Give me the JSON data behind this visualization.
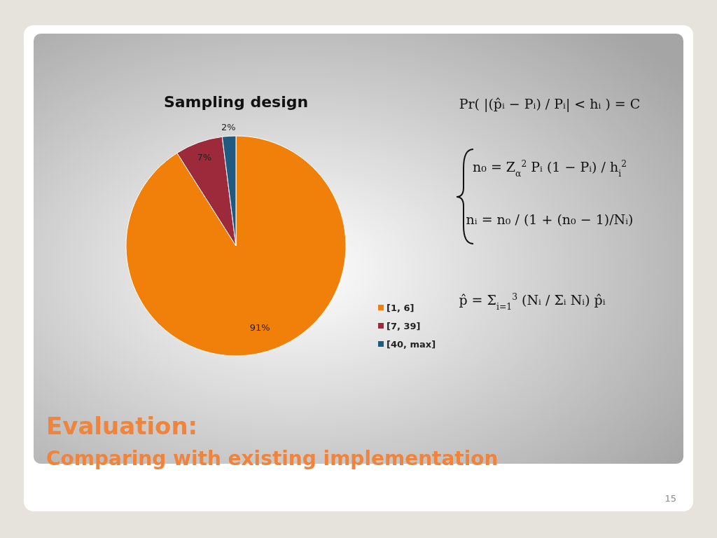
{
  "chart_data": {
    "type": "pie",
    "title": "Evaluation:",
    "subtitle": "Comparing with existing implementation",
    "categories": [
      "[1, 6]",
      "[7, 39]",
      "[40, max]"
    ],
    "values": [
      91,
      7,
      2
    ],
    "colors": [
      "#f0800a",
      "#9c2a3a",
      "#1f5a80"
    ],
    "value_labels": [
      "91%",
      "7%",
      "2%"
    ],
    "legend": "right",
    "annotations": [
      "Sampling design",
      "Pr( |(p̂ᵢ − Pᵢ) / Pᵢ| < hᵢ ) = C",
      "n₀ = Z$_{α}$$^{2}$ Pᵢ (1 − Pᵢ) / h$_{i}$$^{2}$",
      "nᵢ = n₀ / (1 + (n₀ − 1)/Nᵢ)",
      "p̂ = Σ$_{i=1}$$^{3}$ (Nᵢ / Σᵢ Nᵢ) p̂ᵢ",
      "15"
    ]
  }
}
